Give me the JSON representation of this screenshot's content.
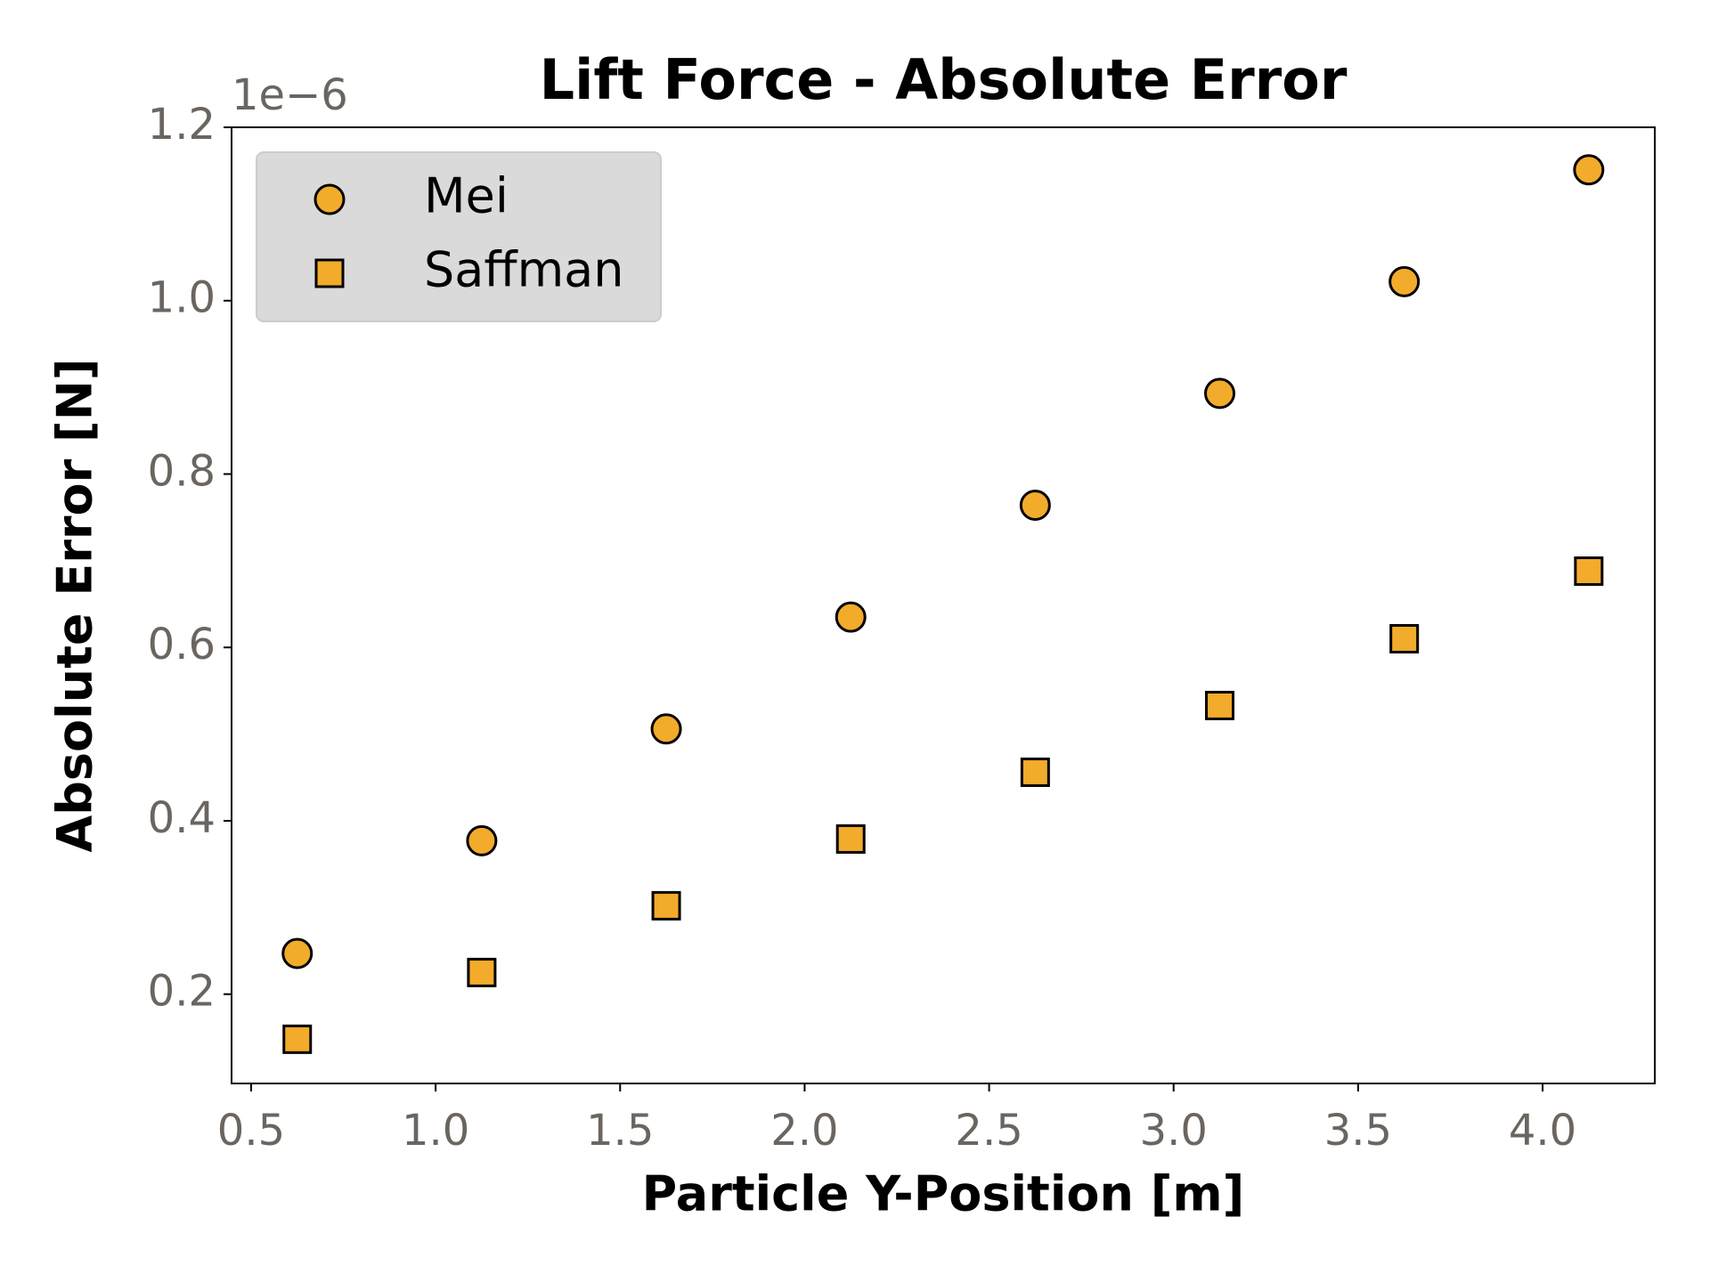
{
  "chart_data": {
    "type": "scatter",
    "title": "Lift Force - Absolute Error",
    "x_label": "Particle Y-Position [m]",
    "y_label": "Absolute Error [N]",
    "y_offset_label": "1e−6",
    "x": [
      0.625,
      1.125,
      1.625,
      2.125,
      2.625,
      3.125,
      3.625,
      4.125
    ],
    "series": [
      {
        "name": "Mei",
        "color": "#f2ab2b",
        "marker": "circle",
        "values": [
          0.247,
          0.377,
          0.506,
          0.635,
          0.764,
          0.893,
          1.022,
          1.151
        ]
      },
      {
        "name": "Saffman",
        "color": "#f2ab2b",
        "marker": "square",
        "values": [
          0.148,
          0.225,
          0.302,
          0.379,
          0.456,
          0.533,
          0.61,
          0.688
        ]
      }
    ],
    "xlim": [
      0.447,
      4.304
    ],
    "ylim": [
      0.097,
      1.2
    ],
    "xticks": [
      0.5,
      {
        "value": 1,
        "label": "1.0"
      },
      1.5,
      {
        "value": 2,
        "label": "2.0"
      },
      2.5,
      {
        "value": 3,
        "label": "3.0"
      },
      3.5,
      {
        "value": 4,
        "label": "4.0"
      }
    ],
    "yticks": [
      0.2,
      0.4,
      0.6,
      0.8,
      {
        "value": 1,
        "label": "1.0"
      },
      1.2
    ],
    "grid": false,
    "legend": "upper left"
  }
}
